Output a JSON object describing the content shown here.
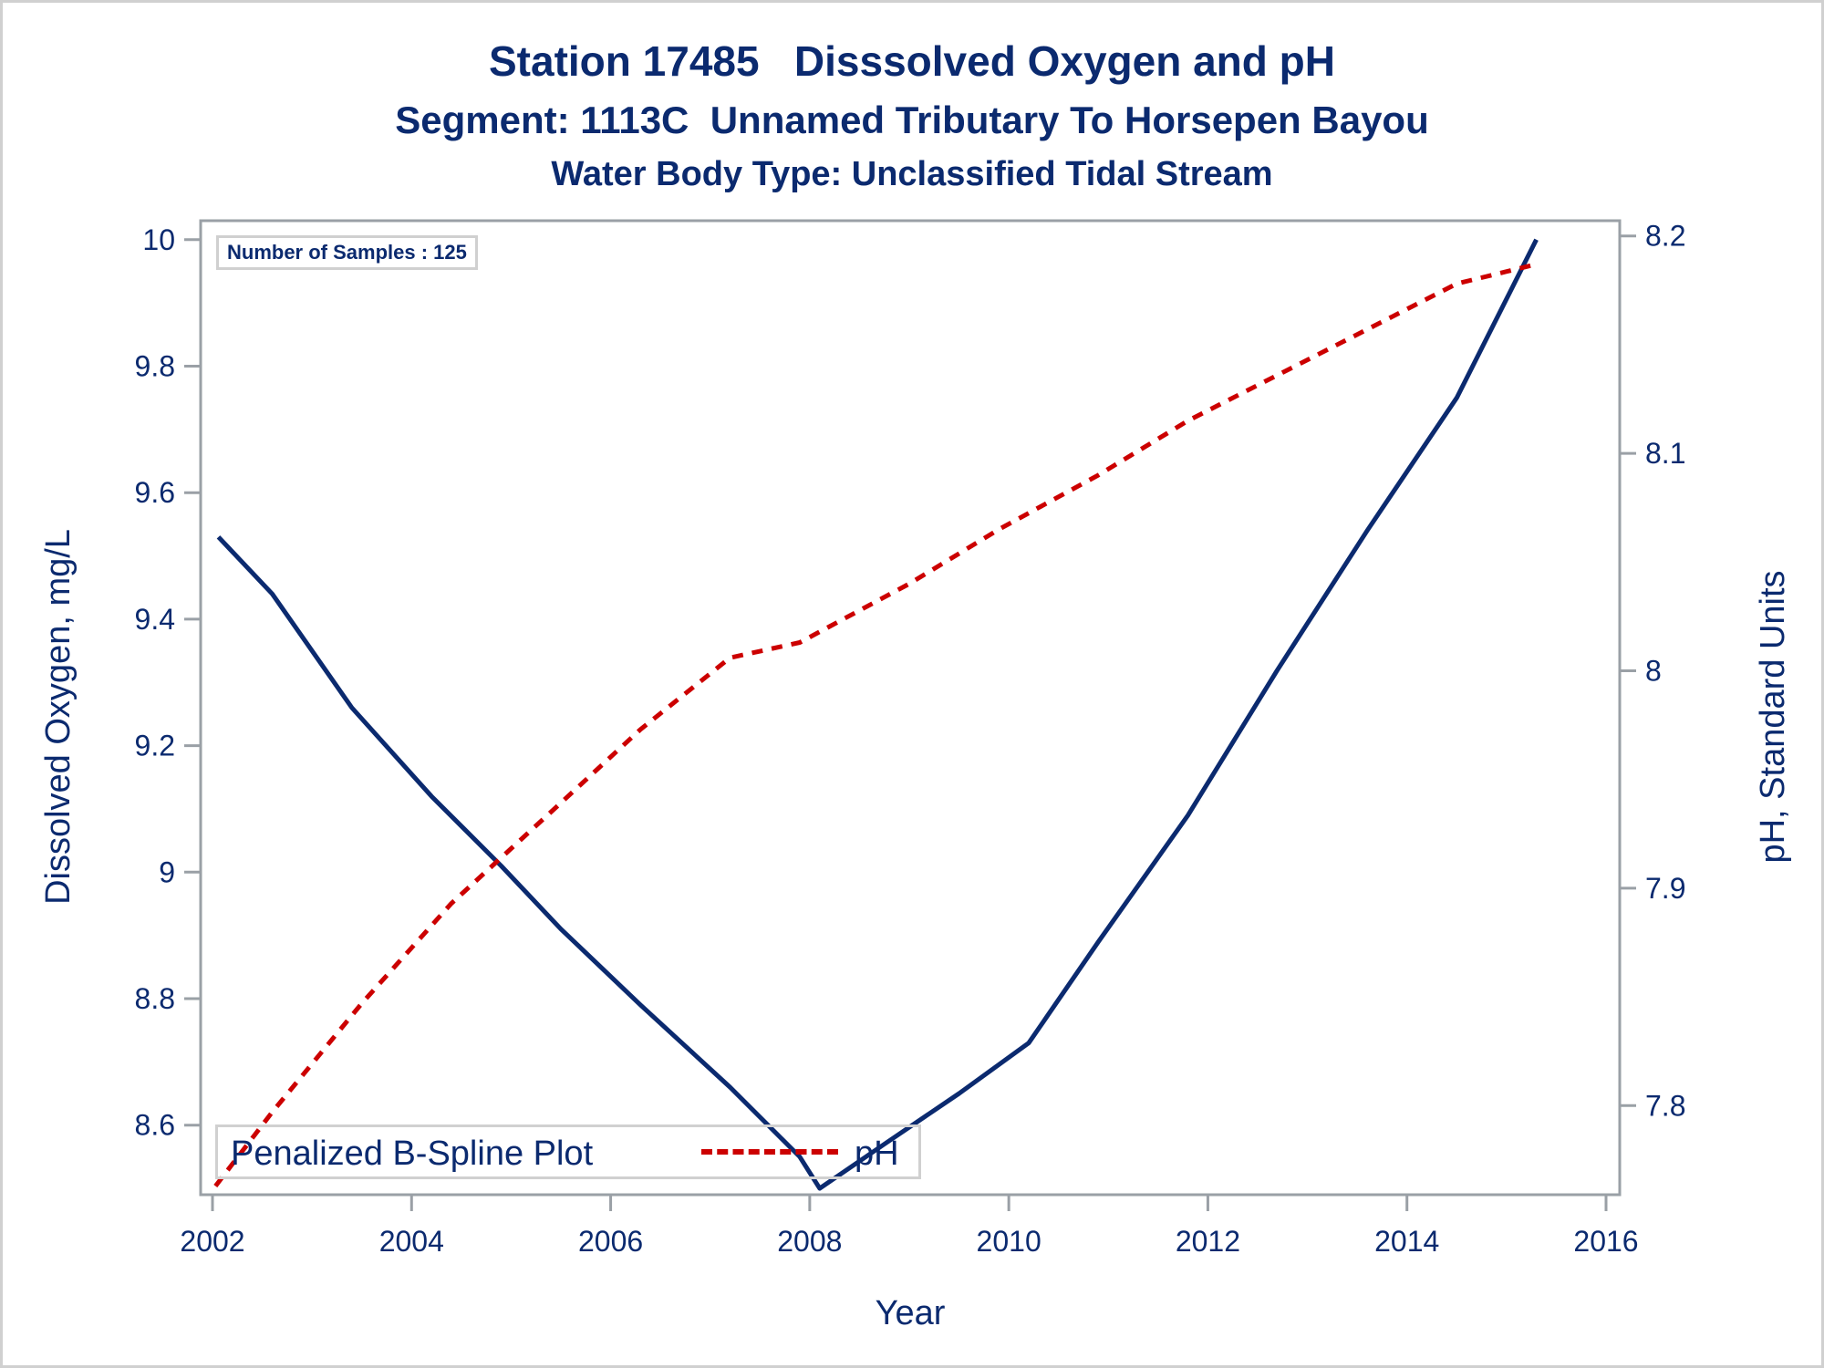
{
  "titles": {
    "line1": "Station 17485   Disssolved Oxygen and pH",
    "line2": "Segment: 1113C  Unnamed Tributary To Horsepen Bayou",
    "line3": "Water Body Type: Unclassified Tidal Stream"
  },
  "inset": {
    "text": "Number of Samples : 125"
  },
  "legend": {
    "title": "Penalized B-Spline Plot",
    "items": [
      {
        "label": "pH",
        "color": "#cc0000",
        "style": "dashed"
      }
    ]
  },
  "colors": {
    "do_line": "#0b2a6f",
    "ph_line": "#cc0000",
    "axis": "#9aa0a6",
    "text": "#0b2a6f",
    "border": "#d0d0d0"
  },
  "chart_data": {
    "type": "line",
    "title": "Station 17485   Disssolved Oxygen and pH",
    "subtitle": [
      "Segment: 1113C  Unnamed Tributary To Horsepen Bayou",
      "Water Body Type: Unclassified Tidal Stream"
    ],
    "xlabel": "Year",
    "ylabel": "Dissolved Oxygen, mg/L",
    "y2label": "pH, Standard Units",
    "xlim": [
      2001.9,
      2016.2
    ],
    "ylim": [
      8.49,
      10.03
    ],
    "y2lim": [
      7.759,
      8.207
    ],
    "xticks": [
      "2002",
      "2004",
      "2006",
      "2008",
      "2010",
      "2012",
      "2014",
      "2016"
    ],
    "xtick_values": [
      2002,
      2004,
      2006,
      2008,
      2010,
      2012,
      2014,
      2016
    ],
    "yticks": [
      "8.6",
      "8.8",
      "9",
      "9.2",
      "9.4",
      "9.6",
      "9.8",
      "10"
    ],
    "ytick_values": [
      8.6,
      8.8,
      9.0,
      9.2,
      9.4,
      9.6,
      9.8,
      10.0
    ],
    "y2ticks": [
      "7.8",
      "7.9",
      "8",
      "8.1",
      "8.2"
    ],
    "y2tick_values": [
      7.8,
      7.9,
      8.0,
      8.1,
      8.2
    ],
    "grid": false,
    "legend_position": "bottom-left",
    "annotations": [
      "Number of Samples : 125"
    ],
    "series": [
      {
        "name": "Dissolved Oxygen",
        "axis": "left",
        "style": "solid",
        "color": "#0b2a6f",
        "x": [
          2002.06,
          2002.6,
          2003.4,
          2004.2,
          2004.9,
          2005.5,
          2006.3,
          2007.2,
          2007.9,
          2008.1,
          2008.75,
          2009.5,
          2010.2,
          2010.9,
          2011.8,
          2012.7,
          2013.6,
          2014.5,
          2015.3
        ],
        "y": [
          9.53,
          9.44,
          9.26,
          9.12,
          9.01,
          8.91,
          8.79,
          8.66,
          8.55,
          8.5,
          8.57,
          8.65,
          8.73,
          8.89,
          9.09,
          9.32,
          9.54,
          9.75,
          10.0
        ]
      },
      {
        "name": "pH",
        "axis": "right",
        "style": "dashed",
        "color": "#cc0000",
        "x": [
          2002.03,
          2002.6,
          2003.5,
          2004.4,
          2005.4,
          2006.3,
          2007.2,
          2007.9,
          2009.0,
          2009.9,
          2010.9,
          2011.8,
          2012.7,
          2013.6,
          2014.5,
          2015.3
        ],
        "y": [
          7.763,
          7.797,
          7.847,
          7.893,
          7.935,
          7.973,
          8.006,
          8.013,
          8.04,
          8.065,
          8.09,
          8.115,
          8.136,
          8.157,
          8.178,
          8.187
        ]
      }
    ]
  }
}
